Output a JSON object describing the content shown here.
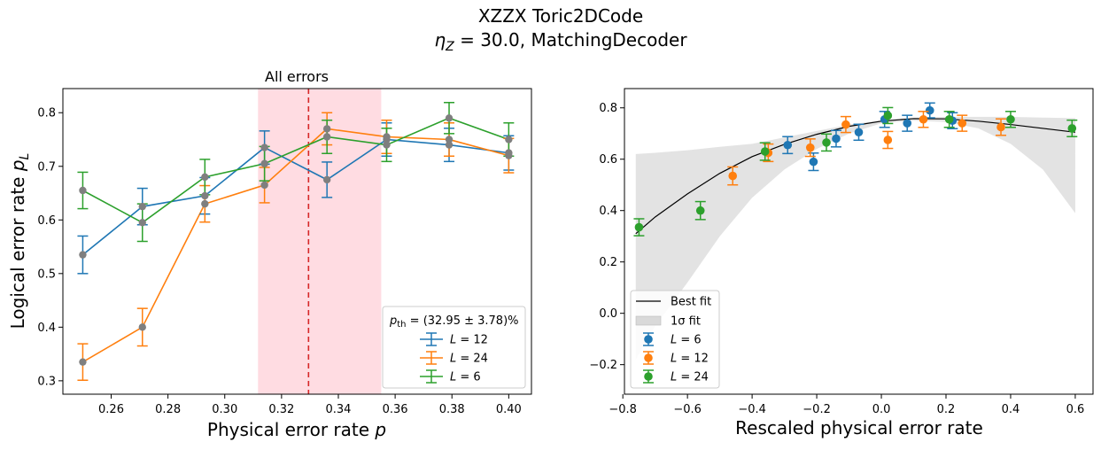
{
  "figure": {
    "title_line1": "XZZX Toric2DCode",
    "title_line2_pre": "η",
    "title_line2_sub": "Z",
    "title_line2_post": " = 30.0, MatchingDecoder"
  },
  "colors": {
    "blue": "#1f77b4",
    "orange": "#ff7f0e",
    "green": "#2ca02c",
    "threshold_line": "#d62728",
    "threshold_band": "#ffc0cb",
    "fit_band": "#d9d9d9"
  },
  "chart_data": [
    {
      "type": "line",
      "title": "All errors",
      "xlabel": "Physical error rate p",
      "ylabel": "Logical error rate p_L",
      "xlabel_parts": {
        "text": "Physical error rate ",
        "var": "p"
      },
      "ylabel_parts": {
        "text": "Logical error rate ",
        "var": "p",
        "sub": "L"
      },
      "xlim": [
        0.243,
        0.408
      ],
      "ylim": [
        0.275,
        0.845
      ],
      "xticks": [
        0.26,
        0.28,
        0.3,
        0.32,
        0.34,
        0.36,
        0.38,
        0.4
      ],
      "xtick_labels": [
        "0.26",
        "0.28",
        "0.30",
        "0.32",
        "0.34",
        "0.36",
        "0.38",
        "0.40"
      ],
      "yticks": [
        0.3,
        0.4,
        0.5,
        0.6,
        0.7,
        0.8
      ],
      "ytick_labels": [
        "0.3",
        "0.4",
        "0.5",
        "0.6",
        "0.7",
        "0.8"
      ],
      "grid": false,
      "threshold": {
        "center": 0.3295,
        "low": 0.3117,
        "high": 0.3551
      },
      "legend": {
        "placement": "lower right",
        "title": "p_th = (32.95 ± 3.78)%",
        "title_parts": {
          "var": "p",
          "sub": "th",
          "rest": " = (32.95 ± 3.78)%"
        }
      },
      "x": [
        0.25,
        0.271,
        0.293,
        0.314,
        0.336,
        0.357,
        0.379,
        0.4
      ],
      "series": [
        {
          "name": "L = 12",
          "label_var": "L",
          "label_val": "12",
          "color": "#1f77b4",
          "values": [
            0.535,
            0.625,
            0.645,
            0.735,
            0.675,
            0.75,
            0.74,
            0.725
          ],
          "errors": [
            0.035,
            0.034,
            0.034,
            0.031,
            0.033,
            0.031,
            0.031,
            0.032
          ]
        },
        {
          "name": "L = 24",
          "label_var": "L",
          "label_val": "24",
          "color": "#ff7f0e",
          "values": [
            0.335,
            0.4,
            0.63,
            0.665,
            0.77,
            0.755,
            0.75,
            0.72
          ],
          "errors": [
            0.034,
            0.035,
            0.034,
            0.033,
            0.03,
            0.031,
            0.031,
            0.032
          ]
        },
        {
          "name": "L = 6",
          "label_var": "L",
          "label_val": "6",
          "color": "#2ca02c",
          "values": [
            0.655,
            0.595,
            0.68,
            0.705,
            0.755,
            0.74,
            0.79,
            0.75
          ],
          "errors": [
            0.034,
            0.035,
            0.033,
            0.032,
            0.031,
            0.031,
            0.029,
            0.031
          ]
        }
      ]
    },
    {
      "type": "scatter",
      "title": "",
      "xlabel": "Rescaled physical error rate",
      "ylabel": "",
      "xlim": [
        -0.795,
        0.655
      ],
      "ylim": [
        -0.315,
        0.875
      ],
      "xticks": [
        -0.8,
        -0.6,
        -0.4,
        -0.2,
        0.0,
        0.2,
        0.4,
        0.6
      ],
      "xtick_labels": [
        "−0.8",
        "−0.6",
        "−0.4",
        "−0.2",
        "0.0",
        "0.2",
        "0.4",
        "0.6"
      ],
      "yticks": [
        -0.2,
        0.0,
        0.2,
        0.4,
        0.6,
        0.8
      ],
      "ytick_labels": [
        "−0.2",
        "0.0",
        "0.2",
        "0.4",
        "0.6",
        "0.8"
      ],
      "grid": false,
      "legend": {
        "placement": "lower left"
      },
      "best_fit": {
        "name": "Best fit",
        "x": [
          -0.76,
          -0.7,
          -0.6,
          -0.5,
          -0.4,
          -0.3,
          -0.2,
          -0.1,
          0.0,
          0.1,
          0.2,
          0.3,
          0.4,
          0.5,
          0.6
        ],
        "y": [
          0.31,
          0.375,
          0.465,
          0.545,
          0.61,
          0.658,
          0.697,
          0.728,
          0.748,
          0.758,
          0.757,
          0.748,
          0.735,
          0.72,
          0.705
        ]
      },
      "fit_band": {
        "name": "1σ fit",
        "x": [
          -0.76,
          -0.7,
          -0.6,
          -0.5,
          -0.4,
          -0.3,
          -0.2,
          -0.1,
          0.0,
          0.1,
          0.2,
          0.3,
          0.4,
          0.5,
          0.6
        ],
        "upper": [
          0.62,
          0.625,
          0.635,
          0.648,
          0.66,
          0.685,
          0.71,
          0.735,
          0.752,
          0.762,
          0.765,
          0.765,
          0.765,
          0.762,
          0.76
        ],
        "lower": [
          -0.18,
          -0.05,
          0.12,
          0.3,
          0.45,
          0.56,
          0.64,
          0.7,
          0.74,
          0.75,
          0.745,
          0.72,
          0.66,
          0.56,
          0.39
        ]
      },
      "series": [
        {
          "name": "L = 6",
          "label_var": "L",
          "label_val": "6",
          "color": "#1f77b4",
          "x": [
            -0.29,
            -0.21,
            -0.14,
            -0.07,
            0.01,
            0.08,
            0.15,
            0.22
          ],
          "values": [
            0.655,
            0.59,
            0.68,
            0.705,
            0.755,
            0.74,
            0.79,
            0.75
          ],
          "errors": [
            0.033,
            0.034,
            0.032,
            0.031,
            0.031,
            0.031,
            0.029,
            0.031
          ]
        },
        {
          "name": "L = 12",
          "label_var": "L",
          "label_val": "12",
          "color": "#ff7f0e",
          "x": [
            -0.46,
            -0.35,
            -0.22,
            -0.11,
            0.02,
            0.13,
            0.25,
            0.37
          ],
          "values": [
            0.535,
            0.625,
            0.645,
            0.735,
            0.675,
            0.755,
            0.74,
            0.725
          ],
          "errors": [
            0.035,
            0.034,
            0.034,
            0.031,
            0.033,
            0.031,
            0.031,
            0.032
          ]
        },
        {
          "name": "L = 24",
          "label_var": "L",
          "label_val": "24",
          "color": "#2ca02c",
          "x": [
            -0.75,
            -0.56,
            -0.36,
            -0.17,
            0.02,
            0.21,
            0.4,
            0.59
          ],
          "values": [
            0.335,
            0.4,
            0.63,
            0.665,
            0.77,
            0.755,
            0.755,
            0.72
          ],
          "errors": [
            0.033,
            0.035,
            0.034,
            0.033,
            0.031,
            0.031,
            0.031,
            0.032
          ]
        }
      ]
    }
  ]
}
